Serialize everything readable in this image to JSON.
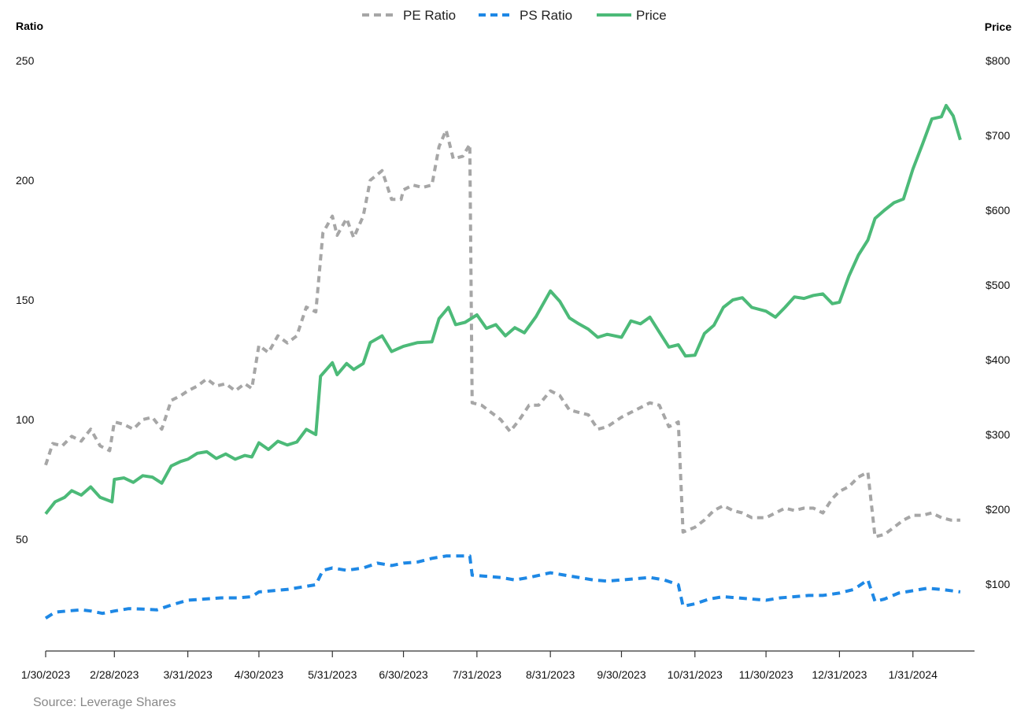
{
  "chart_data": {
    "type": "line",
    "title": "",
    "source": "Source: Leverage Shares",
    "left_axis": {
      "label": "Ratio",
      "ticks": [
        "250",
        "200",
        "150",
        "100",
        "50"
      ],
      "range": [
        0,
        250
      ]
    },
    "right_axis": {
      "label": "Price",
      "ticks": [
        "$800",
        "$700",
        "$600",
        "$500",
        "$400",
        "$300",
        "$200",
        "$100"
      ],
      "range": [
        0,
        800
      ]
    },
    "x_axis": {
      "ticks": [
        "1/30/2023",
        "2/28/2023",
        "3/31/2023",
        "4/30/2023",
        "5/31/2023",
        "6/30/2023",
        "7/31/2023",
        "8/31/2023",
        "9/30/2023",
        "10/31/2023",
        "11/30/2023",
        "12/31/2023",
        "1/31/2024"
      ],
      "range": [
        "2023-01-30",
        "2024-02-26"
      ]
    },
    "grid": false,
    "legend_position": "top-center",
    "series": [
      {
        "name": "PE Ratio",
        "axis": "left",
        "color": "#a6a6a6",
        "style": "dashed",
        "points": [
          [
            "2023-01-30",
            81
          ],
          [
            "2023-02-02",
            90
          ],
          [
            "2023-02-06",
            89
          ],
          [
            "2023-02-10",
            93
          ],
          [
            "2023-02-14",
            91
          ],
          [
            "2023-02-18",
            96
          ],
          [
            "2023-02-22",
            89
          ],
          [
            "2023-02-26",
            87
          ],
          [
            "2023-02-28",
            99
          ],
          [
            "2023-03-04",
            98
          ],
          [
            "2023-03-08",
            96
          ],
          [
            "2023-03-12",
            100
          ],
          [
            "2023-03-16",
            101
          ],
          [
            "2023-03-20",
            96
          ],
          [
            "2023-03-24",
            108
          ],
          [
            "2023-03-28",
            110
          ],
          [
            "2023-03-31",
            112
          ],
          [
            "2023-04-04",
            114
          ],
          [
            "2023-04-08",
            117
          ],
          [
            "2023-04-12",
            114
          ],
          [
            "2023-04-16",
            115
          ],
          [
            "2023-04-20",
            112
          ],
          [
            "2023-04-24",
            115
          ],
          [
            "2023-04-27",
            113
          ],
          [
            "2023-04-30",
            131
          ],
          [
            "2023-05-04",
            128
          ],
          [
            "2023-05-08",
            135
          ],
          [
            "2023-05-12",
            132
          ],
          [
            "2023-05-16",
            135
          ],
          [
            "2023-05-20",
            147
          ],
          [
            "2023-05-24",
            145
          ],
          [
            "2023-05-27",
            178
          ],
          [
            "2023-05-31",
            185
          ],
          [
            "2023-06-02",
            177
          ],
          [
            "2023-06-06",
            184
          ],
          [
            "2023-06-09",
            176
          ],
          [
            "2023-06-13",
            185
          ],
          [
            "2023-06-16",
            200
          ],
          [
            "2023-06-21",
            204
          ],
          [
            "2023-06-25",
            192
          ],
          [
            "2023-06-29",
            192
          ],
          [
            "2023-06-30",
            196
          ],
          [
            "2023-07-04",
            198
          ],
          [
            "2023-07-08",
            197
          ],
          [
            "2023-07-12",
            198
          ],
          [
            "2023-07-15",
            214
          ],
          [
            "2023-07-18",
            221
          ],
          [
            "2023-07-21",
            209
          ],
          [
            "2023-07-25",
            210
          ],
          [
            "2023-07-28",
            215
          ],
          [
            "2023-07-29",
            107
          ],
          [
            "2023-08-02",
            106
          ],
          [
            "2023-08-06",
            103
          ],
          [
            "2023-08-10",
            100
          ],
          [
            "2023-08-14",
            95
          ],
          [
            "2023-08-18",
            100
          ],
          [
            "2023-08-22",
            106
          ],
          [
            "2023-08-26",
            106
          ],
          [
            "2023-08-31",
            112
          ],
          [
            "2023-09-04",
            110
          ],
          [
            "2023-09-08",
            104
          ],
          [
            "2023-09-12",
            103
          ],
          [
            "2023-09-16",
            102
          ],
          [
            "2023-09-20",
            96
          ],
          [
            "2023-09-24",
            97
          ],
          [
            "2023-09-30",
            101
          ],
          [
            "2023-10-04",
            103
          ],
          [
            "2023-10-08",
            105
          ],
          [
            "2023-10-12",
            107
          ],
          [
            "2023-10-16",
            106
          ],
          [
            "2023-10-20",
            97
          ],
          [
            "2023-10-24",
            99
          ],
          [
            "2023-10-26",
            53
          ],
          [
            "2023-10-31",
            55
          ],
          [
            "2023-11-04",
            58
          ],
          [
            "2023-11-08",
            62
          ],
          [
            "2023-11-12",
            64
          ],
          [
            "2023-11-16",
            62
          ],
          [
            "2023-11-20",
            61
          ],
          [
            "2023-11-24",
            59
          ],
          [
            "2023-11-30",
            59
          ],
          [
            "2023-12-04",
            61
          ],
          [
            "2023-12-08",
            63
          ],
          [
            "2023-12-12",
            62
          ],
          [
            "2023-12-16",
            63
          ],
          [
            "2023-12-20",
            63
          ],
          [
            "2023-12-24",
            61
          ],
          [
            "2023-12-28",
            67
          ],
          [
            "2023-12-31",
            70
          ],
          [
            "2024-01-04",
            72
          ],
          [
            "2024-01-08",
            76
          ],
          [
            "2024-01-12",
            78
          ],
          [
            "2024-01-15",
            51
          ],
          [
            "2024-01-19",
            52
          ],
          [
            "2024-01-23",
            55
          ],
          [
            "2024-01-27",
            58
          ],
          [
            "2024-01-31",
            60
          ],
          [
            "2024-02-04",
            60
          ],
          [
            "2024-02-08",
            61
          ],
          [
            "2024-02-12",
            59
          ],
          [
            "2024-02-16",
            58
          ],
          [
            "2024-02-20",
            58
          ]
        ]
      },
      {
        "name": "PS Ratio",
        "axis": "left",
        "color": "#1e88e5",
        "style": "dashed",
        "points": [
          [
            "2023-01-30",
            17
          ],
          [
            "2023-02-03",
            19.5
          ],
          [
            "2023-02-08",
            20
          ],
          [
            "2023-02-14",
            20.5
          ],
          [
            "2023-02-18",
            20
          ],
          [
            "2023-02-23",
            19
          ],
          [
            "2023-02-28",
            20
          ],
          [
            "2023-03-06",
            21
          ],
          [
            "2023-03-12",
            20.8
          ],
          [
            "2023-03-18",
            20.5
          ],
          [
            "2023-03-24",
            22.5
          ],
          [
            "2023-03-31",
            24.5
          ],
          [
            "2023-04-07",
            25
          ],
          [
            "2023-04-14",
            25.5
          ],
          [
            "2023-04-21",
            25.5
          ],
          [
            "2023-04-27",
            26
          ],
          [
            "2023-04-30",
            28
          ],
          [
            "2023-05-06",
            28.5
          ],
          [
            "2023-05-12",
            29
          ],
          [
            "2023-05-18",
            30
          ],
          [
            "2023-05-24",
            31
          ],
          [
            "2023-05-27",
            37
          ],
          [
            "2023-05-31",
            38
          ],
          [
            "2023-06-06",
            37
          ],
          [
            "2023-06-13",
            38
          ],
          [
            "2023-06-19",
            40
          ],
          [
            "2023-06-25",
            39
          ],
          [
            "2023-06-30",
            40
          ],
          [
            "2023-07-06",
            40.5
          ],
          [
            "2023-07-12",
            42
          ],
          [
            "2023-07-18",
            43
          ],
          [
            "2023-07-24",
            43
          ],
          [
            "2023-07-28",
            43
          ],
          [
            "2023-07-29",
            35
          ],
          [
            "2023-08-04",
            34.5
          ],
          [
            "2023-08-10",
            34
          ],
          [
            "2023-08-16",
            33
          ],
          [
            "2023-08-22",
            34
          ],
          [
            "2023-08-31",
            36
          ],
          [
            "2023-09-06",
            35
          ],
          [
            "2023-09-12",
            34
          ],
          [
            "2023-09-18",
            33
          ],
          [
            "2023-09-24",
            32.5
          ],
          [
            "2023-09-30",
            33
          ],
          [
            "2023-10-06",
            33.5
          ],
          [
            "2023-10-12",
            34
          ],
          [
            "2023-10-18",
            33
          ],
          [
            "2023-10-24",
            31
          ],
          [
            "2023-10-26",
            22
          ],
          [
            "2023-10-31",
            23
          ],
          [
            "2023-11-06",
            25
          ],
          [
            "2023-11-12",
            26
          ],
          [
            "2023-11-18",
            25.5
          ],
          [
            "2023-11-24",
            25
          ],
          [
            "2023-11-30",
            24.5
          ],
          [
            "2023-12-06",
            25.5
          ],
          [
            "2023-12-12",
            26
          ],
          [
            "2023-12-18",
            26.5
          ],
          [
            "2023-12-24",
            26.5
          ],
          [
            "2023-12-31",
            27.5
          ],
          [
            "2023-01-06",
            27.5
          ],
          [
            "2024-01-06",
            29
          ],
          [
            "2024-01-12",
            33
          ],
          [
            "2024-01-15",
            24
          ],
          [
            "2024-01-19",
            25
          ],
          [
            "2024-01-25",
            27.5
          ],
          [
            "2024-01-31",
            28.5
          ],
          [
            "2024-02-06",
            29.5
          ],
          [
            "2024-02-12",
            29
          ],
          [
            "2024-02-20",
            28
          ]
        ]
      },
      {
        "name": "Price",
        "axis": "right",
        "color": "#4cba78",
        "style": "solid",
        "points": [
          [
            "2023-01-30",
            194
          ],
          [
            "2023-02-03",
            210
          ],
          [
            "2023-02-07",
            216
          ],
          [
            "2023-02-10",
            225
          ],
          [
            "2023-02-14",
            219
          ],
          [
            "2023-02-18",
            230
          ],
          [
            "2023-02-22",
            216
          ],
          [
            "2023-02-27",
            210
          ],
          [
            "2023-02-28",
            240
          ],
          [
            "2023-03-04",
            242
          ],
          [
            "2023-03-08",
            236
          ],
          [
            "2023-03-12",
            245
          ],
          [
            "2023-03-16",
            243
          ],
          [
            "2023-03-20",
            235
          ],
          [
            "2023-03-24",
            258
          ],
          [
            "2023-03-28",
            264
          ],
          [
            "2023-03-31",
            267
          ],
          [
            "2023-04-04",
            275
          ],
          [
            "2023-04-08",
            277
          ],
          [
            "2023-04-12",
            268
          ],
          [
            "2023-04-16",
            274
          ],
          [
            "2023-04-20",
            267
          ],
          [
            "2023-04-24",
            272
          ],
          [
            "2023-04-27",
            270
          ],
          [
            "2023-04-30",
            289
          ],
          [
            "2023-05-04",
            280
          ],
          [
            "2023-05-08",
            291
          ],
          [
            "2023-05-12",
            286
          ],
          [
            "2023-05-16",
            290
          ],
          [
            "2023-05-20",
            307
          ],
          [
            "2023-05-24",
            300
          ],
          [
            "2023-05-26",
            378
          ],
          [
            "2023-05-31",
            396
          ],
          [
            "2023-06-02",
            380
          ],
          [
            "2023-06-06",
            395
          ],
          [
            "2023-06-09",
            387
          ],
          [
            "2023-06-13",
            395
          ],
          [
            "2023-06-16",
            423
          ],
          [
            "2023-06-21",
            432
          ],
          [
            "2023-06-25",
            411
          ],
          [
            "2023-06-30",
            418
          ],
          [
            "2023-07-06",
            423
          ],
          [
            "2023-07-12",
            424
          ],
          [
            "2023-07-15",
            455
          ],
          [
            "2023-07-19",
            470
          ],
          [
            "2023-07-22",
            447
          ],
          [
            "2023-07-26",
            450
          ],
          [
            "2023-07-31",
            460
          ],
          [
            "2023-08-04",
            442
          ],
          [
            "2023-08-08",
            447
          ],
          [
            "2023-08-12",
            432
          ],
          [
            "2023-08-16",
            443
          ],
          [
            "2023-08-20",
            436
          ],
          [
            "2023-08-25",
            458
          ],
          [
            "2023-08-31",
            492
          ],
          [
            "2023-09-04",
            478
          ],
          [
            "2023-09-08",
            456
          ],
          [
            "2023-09-12",
            448
          ],
          [
            "2023-09-16",
            441
          ],
          [
            "2023-09-20",
            430
          ],
          [
            "2023-09-24",
            434
          ],
          [
            "2023-09-30",
            430
          ],
          [
            "2023-10-04",
            452
          ],
          [
            "2023-10-08",
            448
          ],
          [
            "2023-10-12",
            457
          ],
          [
            "2023-10-16",
            437
          ],
          [
            "2023-10-20",
            417
          ],
          [
            "2023-10-24",
            420
          ],
          [
            "2023-10-27",
            405
          ],
          [
            "2023-10-31",
            406
          ],
          [
            "2023-11-04",
            435
          ],
          [
            "2023-11-08",
            446
          ],
          [
            "2023-11-12",
            470
          ],
          [
            "2023-11-16",
            480
          ],
          [
            "2023-11-20",
            483
          ],
          [
            "2023-11-24",
            470
          ],
          [
            "2023-11-30",
            465
          ],
          [
            "2023-12-04",
            457
          ],
          [
            "2023-12-08",
            470
          ],
          [
            "2023-12-12",
            484
          ],
          [
            "2023-12-16",
            482
          ],
          [
            "2023-12-20",
            486
          ],
          [
            "2023-12-24",
            488
          ],
          [
            "2023-12-28",
            475
          ],
          [
            "2023-12-31",
            477
          ],
          [
            "2024-01-04",
            512
          ],
          [
            "2024-01-08",
            540
          ],
          [
            "2024-01-12",
            560
          ],
          [
            "2024-01-15",
            589
          ],
          [
            "2024-01-19",
            600
          ],
          [
            "2024-01-23",
            610
          ],
          [
            "2024-01-27",
            615
          ],
          [
            "2024-01-31",
            655
          ],
          [
            "2024-02-04",
            688
          ],
          [
            "2024-02-08",
            722
          ],
          [
            "2024-02-12",
            725
          ],
          [
            "2024-02-14",
            740
          ],
          [
            "2024-02-17",
            726
          ],
          [
            "2024-02-20",
            694
          ]
        ]
      }
    ]
  }
}
